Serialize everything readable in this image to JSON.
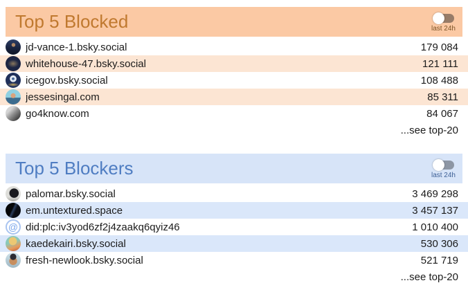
{
  "sections": [
    {
      "id": "blocked",
      "title": "Top 5 Blocked",
      "toggle_label": "last 24h",
      "toggle_state": "off",
      "see_more": "...see top-20",
      "theme": {
        "header_bg": "#fbc9a4",
        "title_color": "#c0792f",
        "row_alt_bg": "#fce5d3",
        "toggle_label_color": "#7c5426"
      },
      "rows": [
        {
          "handle": "jd-vance-1.bsky.social",
          "count": "179 084"
        },
        {
          "handle": "whitehouse-47.bsky.social",
          "count": "121 111"
        },
        {
          "handle": "icegov.bsky.social",
          "count": "108 488"
        },
        {
          "handle": "jessesingal.com",
          "count": "85 311"
        },
        {
          "handle": "go4know.com",
          "count": "84 067"
        }
      ]
    },
    {
      "id": "blockers",
      "title": "Top 5 Blockers",
      "toggle_label": "last 24h",
      "toggle_state": "off",
      "see_more": "...see top-20",
      "theme": {
        "header_bg": "#d7e4f8",
        "title_color": "#4f7dc2",
        "row_alt_bg": "#dae7fa",
        "toggle_label_color": "#3d5f95"
      },
      "rows": [
        {
          "handle": "palomar.bsky.social",
          "count": "3 469 298"
        },
        {
          "handle": "em.untextured.space",
          "count": "3 457 137"
        },
        {
          "handle": "did:plc:iv3yod6zf2j4zaakq6qyiz46",
          "count": "1 010 400"
        },
        {
          "handle": "kaedekairi.bsky.social",
          "count": "530 306"
        },
        {
          "handle": "fresh-newlook.bsky.social",
          "count": "521 719"
        }
      ]
    }
  ],
  "icons": {
    "default_avatar_glyph": "@"
  }
}
